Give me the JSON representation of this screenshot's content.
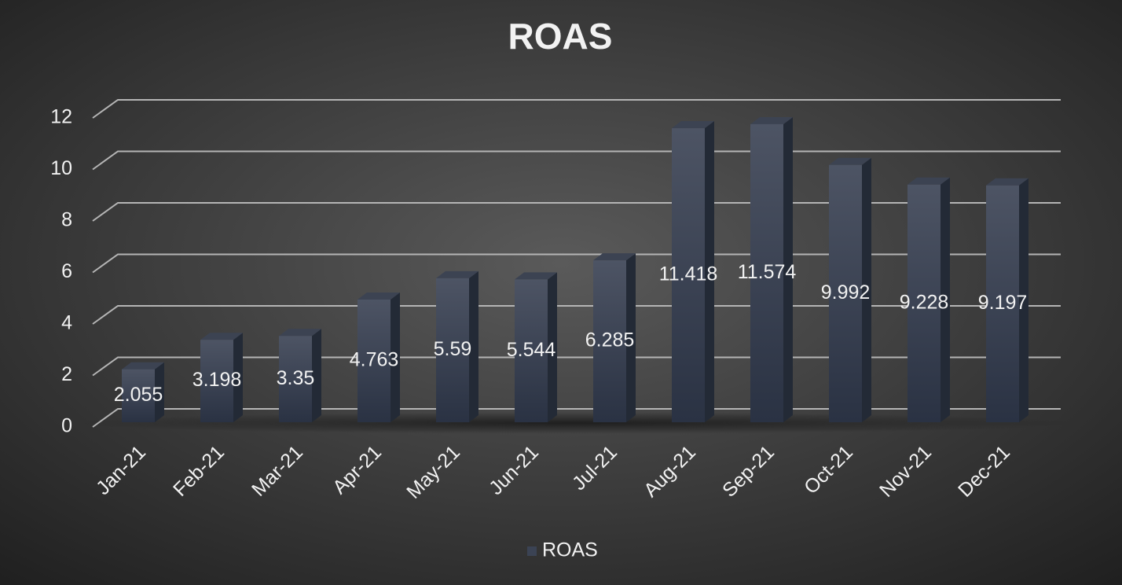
{
  "chart_data": {
    "type": "bar3d",
    "title": "ROAS",
    "categories": [
      "Jan-21",
      "Feb-21",
      "Mar-21",
      "Apr-21",
      "May-21",
      "Jun-21",
      "Jul-21",
      "Aug-21",
      "Sep-21",
      "Oct-21",
      "Nov-21",
      "Dec-21"
    ],
    "series": [
      {
        "name": "ROAS",
        "color": "#3b4354",
        "values": [
          2.055,
          3.198,
          3.35,
          4.763,
          5.59,
          5.544,
          6.285,
          11.418,
          11.574,
          9.992,
          9.228,
          9.197
        ]
      }
    ],
    "ylim": [
      0,
      12
    ],
    "yticks": [
      0,
      2,
      4,
      6,
      8,
      10,
      12
    ],
    "grid": true,
    "legend": "bottom"
  }
}
